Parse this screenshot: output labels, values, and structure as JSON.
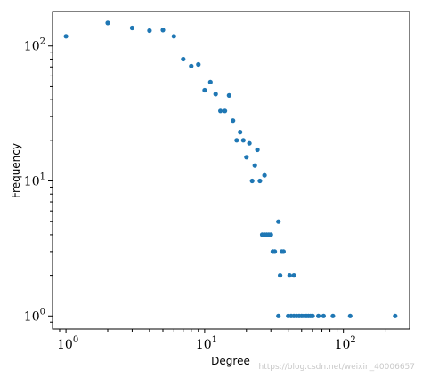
{
  "chart_data": {
    "type": "scatter",
    "title": "",
    "xlabel": "Degree",
    "ylabel": "Frequency",
    "xscale": "log",
    "yscale": "log",
    "xlim": [
      0.8,
      300
    ],
    "ylim": [
      0.8,
      180
    ],
    "grid": false,
    "marker_color": "#1f77b4",
    "x_ticks": [
      {
        "value": 1,
        "base": "10",
        "exp": "0"
      },
      {
        "value": 10,
        "base": "10",
        "exp": "1"
      },
      {
        "value": 100,
        "base": "10",
        "exp": "2"
      }
    ],
    "y_ticks": [
      {
        "value": 1,
        "base": "10",
        "exp": "0"
      },
      {
        "value": 10,
        "base": "10",
        "exp": "1"
      },
      {
        "value": 100,
        "base": "10",
        "exp": "2"
      }
    ],
    "points": [
      [
        1,
        118
      ],
      [
        2,
        148
      ],
      [
        3,
        136
      ],
      [
        4,
        130
      ],
      [
        5,
        131
      ],
      [
        6,
        118
      ],
      [
        7,
        80
      ],
      [
        8,
        71
      ],
      [
        9,
        73
      ],
      [
        10,
        47
      ],
      [
        11,
        54
      ],
      [
        12,
        44
      ],
      [
        13,
        33
      ],
      [
        14,
        33
      ],
      [
        15,
        43
      ],
      [
        16,
        28
      ],
      [
        17,
        20
      ],
      [
        18,
        23
      ],
      [
        19,
        20
      ],
      [
        20,
        15
      ],
      [
        21,
        19
      ],
      [
        22,
        10
      ],
      [
        23,
        13
      ],
      [
        24,
        17
      ],
      [
        25,
        10
      ],
      [
        27,
        11
      ],
      [
        26,
        4
      ],
      [
        27,
        4
      ],
      [
        28,
        4
      ],
      [
        29,
        4
      ],
      [
        30,
        4
      ],
      [
        31,
        3
      ],
      [
        32,
        3
      ],
      [
        34,
        5
      ],
      [
        35,
        2
      ],
      [
        36,
        3
      ],
      [
        37,
        3
      ],
      [
        41,
        2
      ],
      [
        44,
        2
      ],
      [
        34,
        1
      ],
      [
        40,
        1
      ],
      [
        42,
        1
      ],
      [
        44,
        1
      ],
      [
        46,
        1
      ],
      [
        48,
        1
      ],
      [
        50,
        1
      ],
      [
        52,
        1
      ],
      [
        54,
        1
      ],
      [
        56,
        1
      ],
      [
        58,
        1
      ],
      [
        60,
        1
      ],
      [
        66,
        1
      ],
      [
        72,
        1
      ],
      [
        84,
        1
      ],
      [
        112,
        1
      ],
      [
        236,
        1
      ]
    ]
  },
  "watermark": "https://blog.csdn.net/weixin_40006657"
}
